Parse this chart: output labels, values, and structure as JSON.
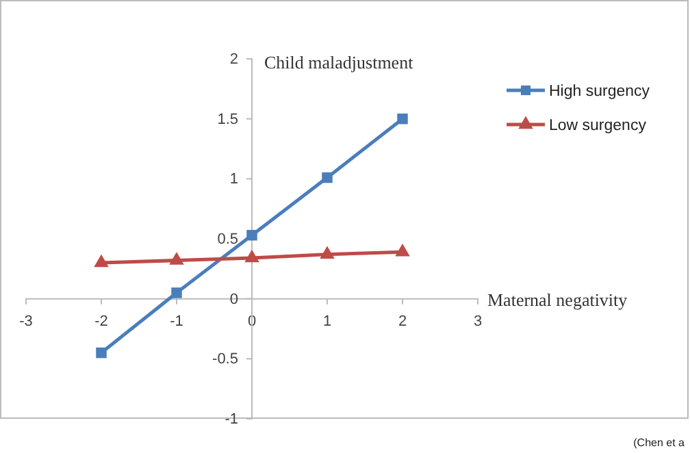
{
  "chart_data": {
    "type": "line",
    "xlabel": "Maternal negativity",
    "ylabel": "Child maladjustment",
    "x": [
      -2,
      -1,
      0,
      1,
      2
    ],
    "series": [
      {
        "name": "High surgency",
        "color": "#4a7ebb",
        "values": [
          -0.45,
          0.05,
          0.53,
          1.01,
          1.5
        ],
        "marker": "square"
      },
      {
        "name": "Low surgency",
        "color": "#be4b48",
        "values": [
          0.3,
          0.32,
          0.34,
          0.37,
          0.39
        ],
        "marker": "triangle"
      }
    ],
    "xlim": [
      -3,
      3
    ],
    "xticks": [
      -3,
      -2,
      -1,
      0,
      1,
      2,
      3
    ],
    "ylim": [
      -1,
      2
    ],
    "yticks": [
      -1,
      -0.5,
      0,
      0.5,
      1,
      1.5,
      2
    ],
    "legend": "top right",
    "grid": false,
    "annotations": [
      "(Chen et a"
    ]
  }
}
